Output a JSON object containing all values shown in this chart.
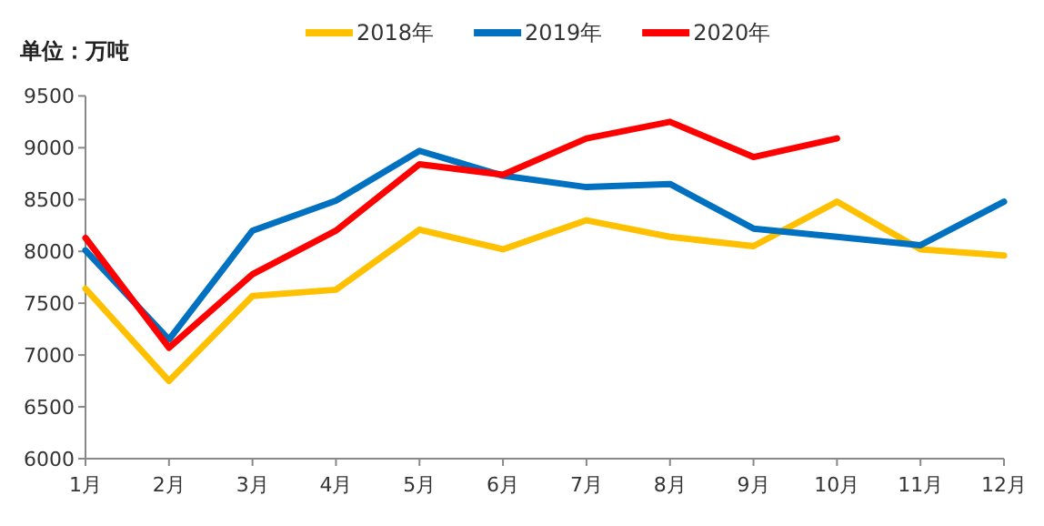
{
  "chart_data": {
    "type": "line",
    "ylabel": "单位：万吨",
    "categories": [
      "1月",
      "2月",
      "3月",
      "4月",
      "5月",
      "6月",
      "7月",
      "8月",
      "9月",
      "10月",
      "11月",
      "12月"
    ],
    "series": [
      {
        "name": "2018年",
        "color": "#ffc000",
        "values": [
          7640,
          6750,
          7570,
          7630,
          8210,
          8020,
          8300,
          8140,
          8050,
          8480,
          8020,
          7960
        ]
      },
      {
        "name": "2019年",
        "color": "#0070c0",
        "values": [
          8010,
          7150,
          8200,
          8490,
          8970,
          8730,
          8620,
          8650,
          8220,
          8140,
          8060,
          8480
        ]
      },
      {
        "name": "2020年",
        "color": "#ff0000",
        "values": [
          8130,
          7070,
          7780,
          8200,
          8840,
          8740,
          9090,
          9250,
          8910,
          9090,
          null,
          null
        ]
      }
    ],
    "ylim": [
      6000,
      9500
    ],
    "yticks": [
      6000,
      6500,
      7000,
      7500,
      8000,
      8500,
      9000,
      9500
    ],
    "grid": false,
    "legend": "top",
    "marker": "none",
    "line_style": "solid"
  }
}
